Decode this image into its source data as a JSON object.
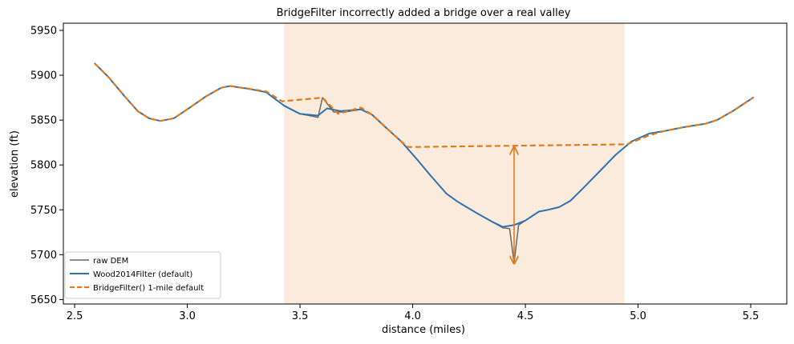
{
  "chart_data": {
    "type": "line",
    "title": "BridgeFilter incorrectly added a bridge over a real valley",
    "xlabel": "distance (miles)",
    "ylabel": "elevation (ft)",
    "xlim": [
      2.45,
      5.66
    ],
    "ylim": [
      5645,
      5958
    ],
    "xticks": [
      2.5,
      3.0,
      3.5,
      4.0,
      4.5,
      5.0,
      5.5
    ],
    "xtick_labels": [
      "2.5",
      "3.0",
      "3.5",
      "4.0",
      "4.5",
      "5.0",
      "5.5"
    ],
    "yticks": [
      5650,
      5700,
      5750,
      5800,
      5850,
      5900,
      5950
    ],
    "ytick_labels": [
      "5650",
      "5700",
      "5750",
      "5800",
      "5850",
      "5900",
      "5950"
    ],
    "grid": false,
    "legend_position": "lower-left",
    "shaded_region": {
      "x": [
        3.43,
        4.94
      ],
      "color": "#fbebdd"
    },
    "annotation_arrow": {
      "x": 4.45,
      "y_from": 5690,
      "y_to": 5820,
      "color": "#e07b1a"
    },
    "series": [
      {
        "name": "raw DEM",
        "color": "#666666",
        "style": "solid",
        "width": 1.5,
        "x": [
          2.59,
          2.65,
          2.72,
          2.78,
          2.83,
          2.88,
          2.94,
          3.0,
          3.08,
          3.15,
          3.19,
          3.27,
          3.35,
          3.43,
          3.5,
          3.58,
          3.6,
          3.65,
          3.7,
          3.77,
          3.82,
          3.88,
          3.95,
          4.02,
          4.08,
          4.15,
          4.2,
          4.28,
          4.35,
          4.4,
          4.43,
          4.45,
          4.47,
          4.5,
          4.56,
          4.6,
          4.65,
          4.7,
          4.76,
          4.83,
          4.9,
          4.97,
          5.05,
          5.12,
          5.2,
          5.3,
          5.35,
          5.42,
          5.51
        ],
        "y": [
          5913,
          5898,
          5877,
          5860,
          5852,
          5849,
          5852,
          5862,
          5876,
          5886,
          5888,
          5885,
          5881,
          5866,
          5857,
          5853,
          5875,
          5859,
          5859,
          5862,
          5856,
          5842,
          5826,
          5806,
          5788,
          5768,
          5759,
          5747,
          5737,
          5730,
          5729,
          5691,
          5733,
          5738,
          5748,
          5750,
          5753,
          5760,
          5775,
          5793,
          5811,
          5826,
          5835,
          5838,
          5842,
          5846,
          5850,
          5860,
          5875
        ]
      },
      {
        "name": "Wood2014Filter (default)",
        "color": "#2e73ae",
        "style": "solid",
        "width": 2,
        "x": [
          2.59,
          2.65,
          2.72,
          2.78,
          2.83,
          2.88,
          2.94,
          3.0,
          3.08,
          3.15,
          3.19,
          3.27,
          3.35,
          3.43,
          3.5,
          3.58,
          3.62,
          3.68,
          3.77,
          3.82,
          3.88,
          3.95,
          4.02,
          4.08,
          4.15,
          4.2,
          4.28,
          4.35,
          4.4,
          4.45,
          4.5,
          4.56,
          4.6,
          4.65,
          4.7,
          4.76,
          4.83,
          4.9,
          4.97,
          5.05,
          5.12,
          5.2,
          5.3,
          5.35,
          5.42,
          5.51
        ],
        "y": [
          5913,
          5898,
          5877,
          5860,
          5852,
          5849,
          5852,
          5862,
          5876,
          5886,
          5888,
          5885,
          5881,
          5866,
          5857,
          5855,
          5863,
          5860,
          5862,
          5856,
          5842,
          5826,
          5806,
          5788,
          5768,
          5759,
          5747,
          5737,
          5731,
          5733,
          5738,
          5748,
          5750,
          5753,
          5760,
          5775,
          5793,
          5811,
          5826,
          5835,
          5838,
          5842,
          5846,
          5850,
          5860,
          5875
        ]
      },
      {
        "name": "BridgeFilter() 1-mile default",
        "color": "#e07b1a",
        "style": "dashed",
        "width": 2.2,
        "x": [
          2.59,
          2.65,
          2.72,
          2.78,
          2.83,
          2.88,
          2.94,
          3.0,
          3.08,
          3.15,
          3.19,
          3.27,
          3.35,
          3.42,
          3.6,
          3.67,
          3.77,
          3.82,
          3.88,
          3.95,
          3.98,
          4.95,
          5.05,
          5.12,
          5.2,
          5.3,
          5.35,
          5.42,
          5.51
        ],
        "y": [
          5913,
          5898,
          5877,
          5860,
          5852,
          5849,
          5852,
          5862,
          5876,
          5886,
          5888,
          5885,
          5882,
          5871,
          5875,
          5857,
          5864,
          5856,
          5842,
          5826,
          5820,
          5823,
          5833,
          5838,
          5842,
          5846,
          5850,
          5860,
          5875
        ]
      }
    ]
  }
}
